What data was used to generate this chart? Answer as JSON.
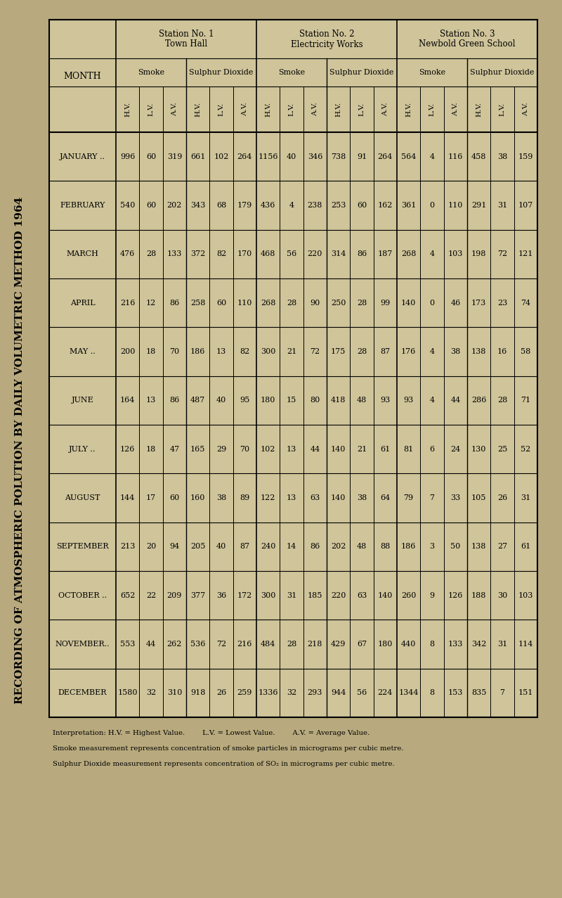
{
  "title": "RECORDING OF ATMOSPHERIC POLUTION BY DAILY VOLUMETRIC METHOD 1964",
  "bg_color": "#b8aa7e",
  "table_bg": "#cfc49a",
  "months": [
    "JANUARY ..",
    "FEBRUARY",
    "MARCH",
    "APRIL",
    "MAY ..",
    "JUNE",
    "JULY ..",
    "AUGUST",
    "SEPTEMBER",
    "OCTOBER ..",
    "NOVEMBER..",
    "DECEMBER"
  ],
  "station1": {
    "name_line1": "Station No. 1",
    "name_line2": "Town Hall",
    "smoke": {
      "hv": [
        996,
        540,
        476,
        216,
        200,
        164,
        126,
        144,
        213,
        652,
        553,
        1580
      ],
      "lv": [
        60,
        60,
        28,
        12,
        18,
        13,
        18,
        17,
        20,
        22,
        44,
        32
      ],
      "av": [
        319,
        202,
        133,
        86,
        70,
        86,
        47,
        60,
        94,
        209,
        262,
        310
      ]
    },
    "so2": {
      "hv": [
        661,
        343,
        372,
        258,
        186,
        487,
        165,
        160,
        205,
        377,
        536,
        918
      ],
      "lv": [
        102,
        68,
        82,
        60,
        13,
        40,
        29,
        38,
        40,
        36,
        72,
        26
      ],
      "av": [
        264,
        179,
        170,
        110,
        82,
        95,
        70,
        89,
        87,
        172,
        216,
        259
      ]
    }
  },
  "station2": {
    "name_line1": "Station No. 2",
    "name_line2": "Electricity Works",
    "smoke": {
      "hv": [
        1156,
        436,
        468,
        268,
        300,
        180,
        102,
        122,
        240,
        300,
        484,
        1336
      ],
      "lv": [
        40,
        4,
        56,
        28,
        21,
        15,
        13,
        13,
        14,
        31,
        28,
        32
      ],
      "av": [
        346,
        238,
        220,
        90,
        72,
        80,
        44,
        63,
        86,
        185,
        218,
        293
      ]
    },
    "so2": {
      "hv": [
        738,
        253,
        314,
        250,
        175,
        418,
        140,
        140,
        202,
        220,
        429,
        944
      ],
      "lv": [
        91,
        60,
        86,
        28,
        28,
        48,
        21,
        38,
        48,
        63,
        67,
        56
      ],
      "av": [
        264,
        162,
        187,
        99,
        87,
        93,
        61,
        64,
        88,
        140,
        180,
        224
      ]
    }
  },
  "station3": {
    "name_line1": "Station No. 3",
    "name_line2": "Newbold Green School",
    "smoke": {
      "hv": [
        564,
        361,
        268,
        140,
        176,
        93,
        81,
        79,
        186,
        260,
        440,
        1344
      ],
      "lv": [
        4,
        0,
        4,
        0,
        4,
        4,
        6,
        7,
        3,
        9,
        8,
        8
      ],
      "av": [
        116,
        110,
        103,
        46,
        38,
        44,
        24,
        33,
        50,
        126,
        133,
        153
      ]
    },
    "so2": {
      "hv": [
        458,
        291,
        198,
        173,
        138,
        286,
        130,
        105,
        138,
        188,
        342,
        835
      ],
      "lv": [
        38,
        31,
        72,
        23,
        16,
        28,
        25,
        26,
        27,
        30,
        31,
        7
      ],
      "av": [
        159,
        107,
        121,
        74,
        58,
        71,
        52,
        31,
        61,
        103,
        114,
        151
      ]
    }
  },
  "interp_line1": "Interpretation: H.V. = Highest Value.        L.V. = Lowest Value.        A.V. = Average Value.",
  "interp_line2": "Smoke measurement represents concentration of smoke particles in micrograms per cubic metre.",
  "interp_line3": "Sulphur Dioxide measurement represents concentration of SO₂ in micrograms per cubic metre."
}
